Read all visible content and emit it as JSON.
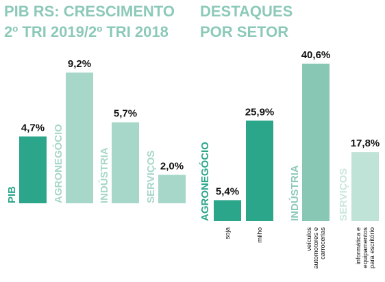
{
  "chart_data": [
    {
      "type": "bar",
      "title_lines": [
        "PIB RS: CRESCIMENTO",
        "2º TRI 2019/2º TRI 2018"
      ],
      "categories": [
        "PIB",
        "AGRONEGÓCIO",
        "INDÚSTRIA",
        "SERVIÇOS"
      ],
      "values": [
        4.7,
        9.2,
        5.7,
        2.0
      ],
      "value_labels": [
        "4,7%",
        "9,2%",
        "5,7%",
        "2,0%"
      ],
      "colors": [
        "#2ba68b",
        "#a6d7c9",
        "#a6d7c9",
        "#a6d7c9"
      ],
      "label_colors": [
        "#2ba68b",
        "#a6d7c9",
        "#a6d7c9",
        "#a6d7c9"
      ],
      "ylim": [
        0,
        9.2
      ]
    },
    {
      "type": "bar",
      "title_lines": [
        "DESTAQUES",
        "POR SETOR"
      ],
      "groups": [
        {
          "name": "AGRONEGÓCIO",
          "color_label": "#2ba68b",
          "items": [
            {
              "category": "soja",
              "value": 5.4,
              "value_label": "5,4%",
              "color": "#2ba68b"
            },
            {
              "category": "milho",
              "value": 25.9,
              "value_label": "25,9%",
              "color": "#2ba68b"
            }
          ]
        },
        {
          "name": "INDÚSTRIA",
          "color_label": "#8cc9b8",
          "items": [
            {
              "category_lines": [
                "veículos",
                "automotores e",
                "carrocerias"
              ],
              "value": 40.6,
              "value_label": "40,6%",
              "color": "#87c7b3"
            }
          ]
        },
        {
          "name": "SERVIÇOS",
          "color_label": "#c9e7dd",
          "items": [
            {
              "category_lines": [
                "informática e",
                "equipamentos",
                "para escritório"
              ],
              "value": 17.8,
              "value_label": "17,8%",
              "color": "#bfe3d7"
            }
          ]
        }
      ],
      "ylim": [
        0,
        40.6
      ]
    }
  ]
}
